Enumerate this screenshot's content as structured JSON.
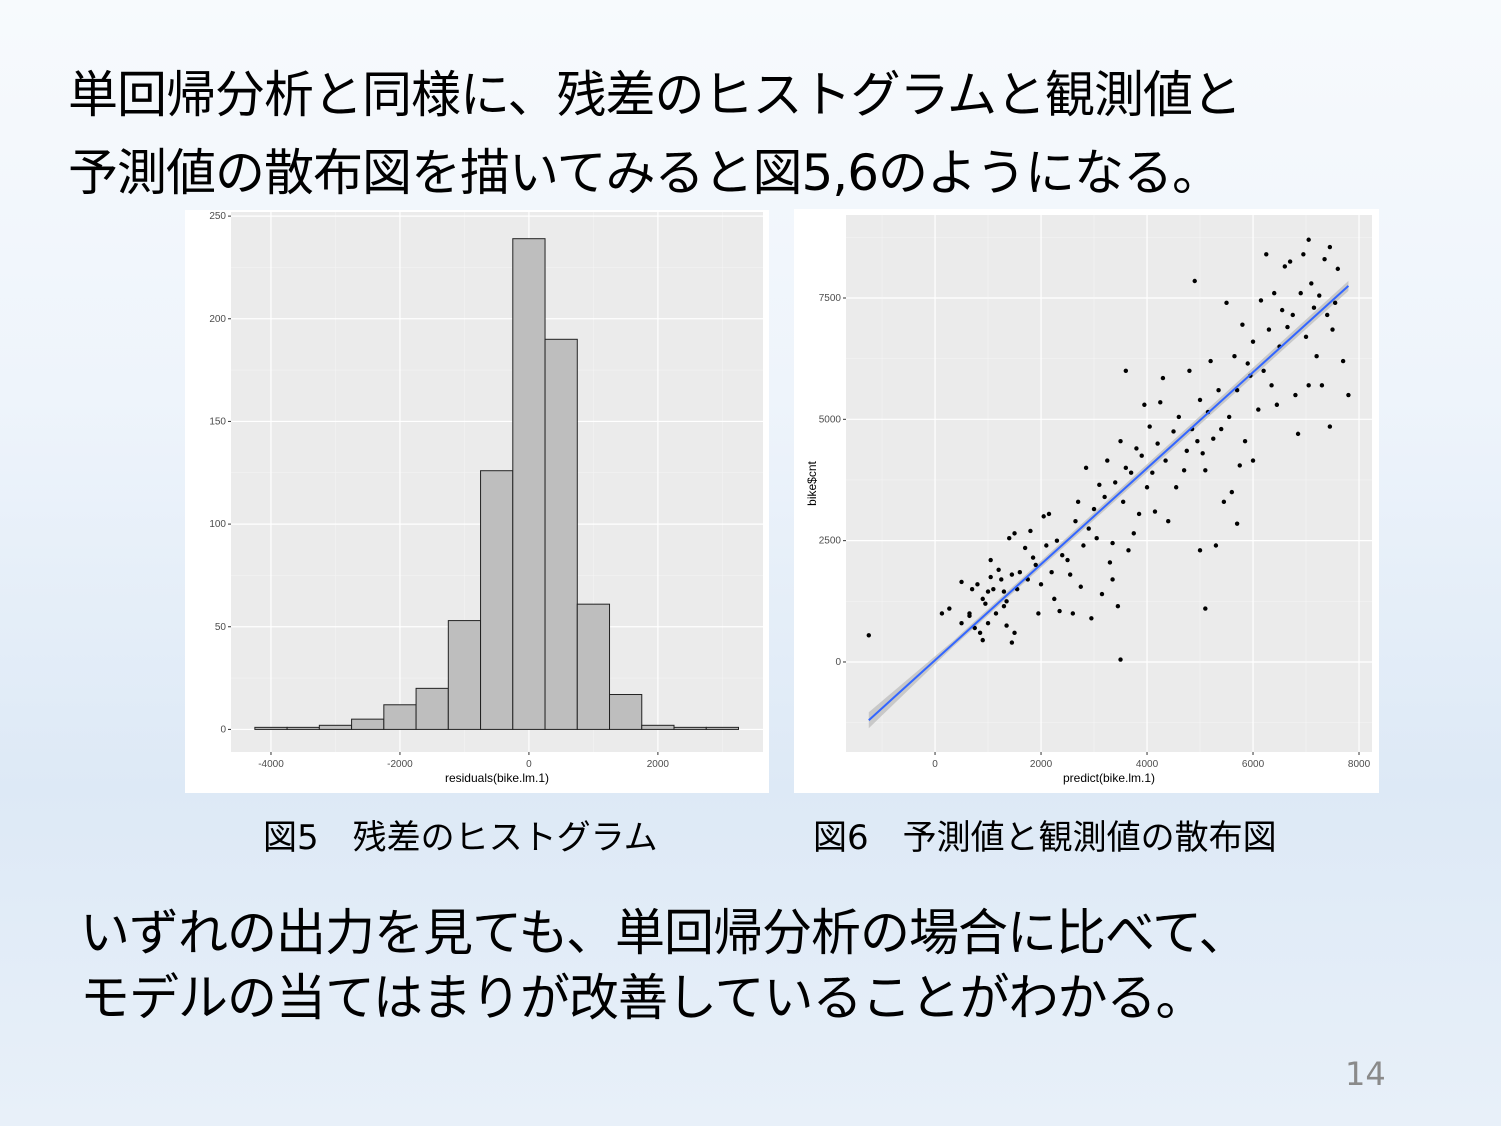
{
  "slide": {
    "title_lines": [
      "単回帰分析と同様に、残差のヒストグラムと観測値と",
      "予測値の散布図を描いてみると図5,6のようになる。"
    ],
    "captions": [
      "図5　残差のヒストグラム",
      "図6　予測値と観測値の散布図"
    ],
    "body_lines": [
      "いずれの出力を見ても、単回帰分析の場合に比べて、",
      "モデルの当てはまりが改善していることがわかる。"
    ],
    "page_number": "14"
  },
  "chart_data": [
    {
      "type": "bar",
      "subtype": "histogram",
      "xlabel": "residuals(bike.lm.1)",
      "ylabel": "",
      "bin_width": 500,
      "bin_centers": [
        -4000,
        -3500,
        -3000,
        -2500,
        -2000,
        -1500,
        -1000,
        -500,
        0,
        500,
        1000,
        1500,
        2000,
        2500,
        3000
      ],
      "values": [
        1,
        1,
        2,
        5,
        12,
        20,
        53,
        126,
        239,
        190,
        61,
        17,
        2,
        1,
        1
      ],
      "xticks": [
        -4000,
        -2000,
        0,
        2000
      ],
      "xtick_labels": [
        "-4000",
        "-2000",
        "0",
        "2000"
      ],
      "yticks": [
        0,
        50,
        100,
        150,
        200,
        250
      ],
      "ytick_labels": [
        "0",
        "50",
        "100",
        "150",
        "200",
        "250"
      ],
      "xlim": [
        -4620,
        3630
      ],
      "ylim": [
        -11,
        252
      ],
      "grid": true,
      "colors": {
        "panel": "#ebebeb",
        "bar_fill": "#bebebe",
        "bar_stroke": "#222222",
        "grid": "#ffffff"
      }
    },
    {
      "type": "scatter",
      "xlabel": "predict(bike.lm.1)",
      "ylabel": "bike$cnt",
      "xticks": [
        0,
        2000,
        4000,
        6000,
        8000
      ],
      "xtick_labels": [
        "0",
        "2000",
        "4000",
        "6000",
        "8000"
      ],
      "yticks": [
        0,
        2500,
        5000,
        7500
      ],
      "ytick_labels": [
        "0",
        "2500",
        "5000",
        "7500"
      ],
      "xlim": [
        -1680,
        8245
      ],
      "ylim": [
        -1855,
        9210
      ],
      "grid": true,
      "trend_line": {
        "method": "lm",
        "x": [
          -1250,
          7800
        ],
        "y": [
          -1200,
          7750
        ],
        "color": "#3366ff",
        "se_band": true
      },
      "colors": {
        "panel": "#ebebeb",
        "point": "#000000",
        "grid": "#ffffff",
        "band": "#c2c2c2"
      },
      "points": [
        [
          -1250,
          550
        ],
        [
          130,
          1000
        ],
        [
          270,
          1100
        ],
        [
          500,
          800
        ],
        [
          500,
          1650
        ],
        [
          650,
          950
        ],
        [
          650,
          1000
        ],
        [
          700,
          1500
        ],
        [
          750,
          700
        ],
        [
          800,
          1600
        ],
        [
          850,
          600
        ],
        [
          900,
          1300
        ],
        [
          900,
          450
        ],
        [
          950,
          1200
        ],
        [
          1000,
          1450
        ],
        [
          1000,
          800
        ],
        [
          1050,
          2100
        ],
        [
          1050,
          1750
        ],
        [
          1100,
          1500
        ],
        [
          1150,
          1000
        ],
        [
          1200,
          1900
        ],
        [
          1250,
          1700
        ],
        [
          1300,
          1150
        ],
        [
          1300,
          1450
        ],
        [
          1350,
          750
        ],
        [
          1350,
          1250
        ],
        [
          1400,
          2550
        ],
        [
          1450,
          1800
        ],
        [
          1500,
          2650
        ],
        [
          1450,
          400
        ],
        [
          1500,
          600
        ],
        [
          1550,
          1500
        ],
        [
          1600,
          1850
        ],
        [
          1700,
          2350
        ],
        [
          1750,
          1700
        ],
        [
          1800,
          2700
        ],
        [
          1850,
          2150
        ],
        [
          1900,
          2000
        ],
        [
          1950,
          1000
        ],
        [
          2000,
          1600
        ],
        [
          2050,
          3000
        ],
        [
          2100,
          2400
        ],
        [
          2150,
          3050
        ],
        [
          2200,
          1850
        ],
        [
          2250,
          1300
        ],
        [
          2300,
          2500
        ],
        [
          2350,
          1050
        ],
        [
          2400,
          2200
        ],
        [
          2500,
          2100
        ],
        [
          2550,
          1800
        ],
        [
          2600,
          1000
        ],
        [
          2650,
          2900
        ],
        [
          2700,
          3300
        ],
        [
          2750,
          1550
        ],
        [
          2800,
          2400
        ],
        [
          2850,
          4000
        ],
        [
          2900,
          2750
        ],
        [
          2950,
          900
        ],
        [
          3000,
          3150
        ],
        [
          3050,
          2550
        ],
        [
          3100,
          3650
        ],
        [
          3150,
          1400
        ],
        [
          3200,
          3400
        ],
        [
          3250,
          4150
        ],
        [
          3300,
          2050
        ],
        [
          3350,
          1700
        ],
        [
          3350,
          2450
        ],
        [
          3400,
          3700
        ],
        [
          3450,
          1150
        ],
        [
          3500,
          4550
        ],
        [
          3500,
          50
        ],
        [
          3550,
          3300
        ],
        [
          3600,
          6000
        ],
        [
          3600,
          4000
        ],
        [
          3650,
          2300
        ],
        [
          3700,
          3900
        ],
        [
          3750,
          2650
        ],
        [
          3800,
          4400
        ],
        [
          3850,
          3050
        ],
        [
          3900,
          4250
        ],
        [
          3950,
          5300
        ],
        [
          4000,
          3600
        ],
        [
          4050,
          4850
        ],
        [
          4100,
          3900
        ],
        [
          4150,
          3100
        ],
        [
          4200,
          4500
        ],
        [
          4250,
          5350
        ],
        [
          4300,
          5850
        ],
        [
          4350,
          4150
        ],
        [
          4400,
          2900
        ],
        [
          4500,
          4750
        ],
        [
          4550,
          3600
        ],
        [
          4600,
          5050
        ],
        [
          4700,
          3950
        ],
        [
          4750,
          4350
        ],
        [
          4800,
          6000
        ],
        [
          4850,
          4800
        ],
        [
          4900,
          7850
        ],
        [
          4950,
          4550
        ],
        [
          5000,
          2300
        ],
        [
          5000,
          5400
        ],
        [
          5050,
          4300
        ],
        [
          5100,
          1100
        ],
        [
          5100,
          3950
        ],
        [
          5150,
          5150
        ],
        [
          5200,
          6200
        ],
        [
          5250,
          4600
        ],
        [
          5300,
          2400
        ],
        [
          5350,
          5600
        ],
        [
          5400,
          4800
        ],
        [
          5450,
          3300
        ],
        [
          5500,
          7400
        ],
        [
          5550,
          5050
        ],
        [
          5600,
          3500
        ],
        [
          5650,
          6300
        ],
        [
          5700,
          2850
        ],
        [
          5700,
          5600
        ],
        [
          5750,
          4050
        ],
        [
          5800,
          6950
        ],
        [
          5850,
          4550
        ],
        [
          5900,
          6150
        ],
        [
          5950,
          5900
        ],
        [
          6000,
          4150
        ],
        [
          6000,
          6600
        ],
        [
          6100,
          5200
        ],
        [
          6150,
          7450
        ],
        [
          6200,
          6000
        ],
        [
          6250,
          8400
        ],
        [
          6300,
          6850
        ],
        [
          6350,
          5700
        ],
        [
          6400,
          7600
        ],
        [
          6450,
          5300
        ],
        [
          6500,
          6500
        ],
        [
          6550,
          7250
        ],
        [
          6600,
          8150
        ],
        [
          6650,
          6900
        ],
        [
          6700,
          8250
        ],
        [
          6750,
          7150
        ],
        [
          6800,
          5500
        ],
        [
          6850,
          4700
        ],
        [
          6900,
          7600
        ],
        [
          6950,
          8400
        ],
        [
          7000,
          6700
        ],
        [
          7050,
          8700
        ],
        [
          7050,
          5700
        ],
        [
          7100,
          7800
        ],
        [
          7150,
          7300
        ],
        [
          7200,
          6300
        ],
        [
          7250,
          7550
        ],
        [
          7300,
          5700
        ],
        [
          7350,
          8300
        ],
        [
          7400,
          7150
        ],
        [
          7450,
          8550
        ],
        [
          7450,
          4850
        ],
        [
          7500,
          6850
        ],
        [
          7550,
          7400
        ],
        [
          7600,
          8100
        ],
        [
          7700,
          6200
        ],
        [
          7800,
          5500
        ]
      ]
    }
  ]
}
